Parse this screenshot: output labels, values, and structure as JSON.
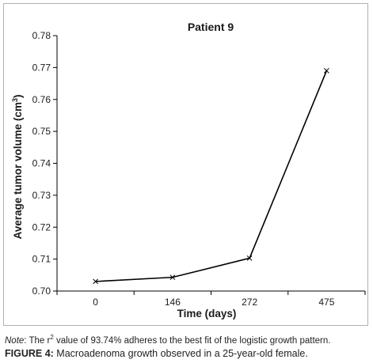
{
  "chart_data": {
    "type": "line",
    "title": "Patient 9",
    "xlabel": "Time (days)",
    "ylabel_prefix": "Average tumor volume (cm",
    "ylabel_sup": "3",
    "ylabel_suffix": ")",
    "categories": [
      "0",
      "146",
      "272",
      "475"
    ],
    "values": [
      0.703,
      0.7043,
      0.7103,
      0.769
    ],
    "ylim": [
      0.7,
      0.78
    ],
    "yticks": [
      "0.70",
      "0.71",
      "0.72",
      "0.73",
      "0.74",
      "0.75",
      "0.76",
      "0.77",
      "0.78"
    ],
    "marker": "x",
    "line_color": "#000000",
    "grid": false,
    "legend": false
  },
  "note": {
    "label": "Note",
    "text_before": ": The r",
    "sup": "2",
    "text_after": " value of 93.74% adheres to the best fit of the logistic growth pattern."
  },
  "caption": {
    "label": "FIGURE 4:",
    "text": " Macroadenoma growth observed in a 25-year-old female."
  }
}
